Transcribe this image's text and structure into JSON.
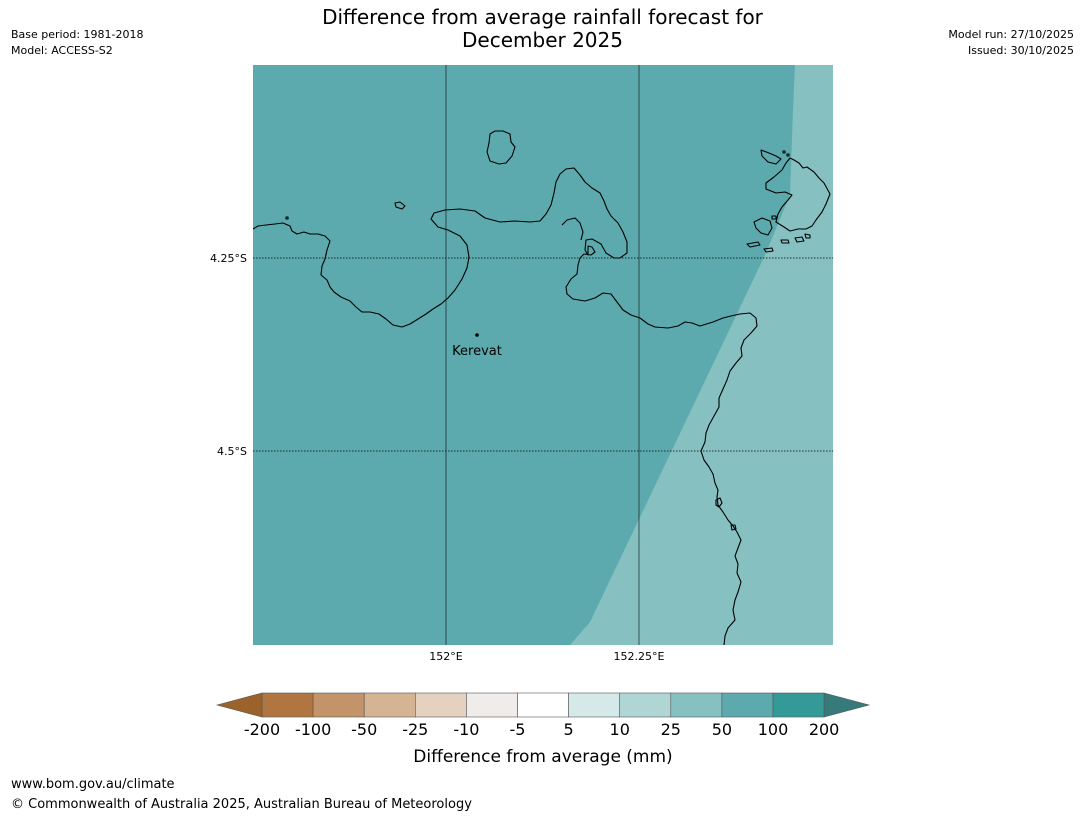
{
  "header": {
    "title": "Difference from average rainfall forecast for\nDecember 2025",
    "base_period": "Base period: 1981-2018",
    "model": "Model: ACCESS-S2",
    "model_run": "Model run: 27/10/2025",
    "issued": "Issued: 30/10/2025"
  },
  "map": {
    "latitude_labels": [
      "4.25°S",
      "4.5°S"
    ],
    "longitude_labels": [
      "152°E",
      "152.25°E"
    ],
    "place": {
      "name": "Kerevat"
    },
    "colors": {
      "land_and_sea_50_100": "#5caaad",
      "band_25_50": "#86c0c0",
      "coastline": "#000000",
      "gridline": "#000000"
    }
  },
  "colorbar": {
    "title": "Difference from average (mm)",
    "ticks": [
      "-200",
      "-100",
      "-50",
      "-25",
      "-10",
      "-5",
      "5",
      "10",
      "25",
      "50",
      "100",
      "200"
    ],
    "colors": {
      "below_min": "#9b622b",
      "bins": [
        "#b07540",
        "#c3946a",
        "#d5b494",
        "#e5d1bf",
        "#f0ece9",
        "#ffffff",
        "#d6e9e9",
        "#afd5d5",
        "#86c0c0",
        "#5caaad",
        "#349a98"
      ],
      "above_max": "#377a7b"
    }
  },
  "footer": {
    "url": "www.bom.gov.au/climate",
    "copyright": "© Commonwealth of Australia 2025, Australian Bureau of Meteorology"
  }
}
